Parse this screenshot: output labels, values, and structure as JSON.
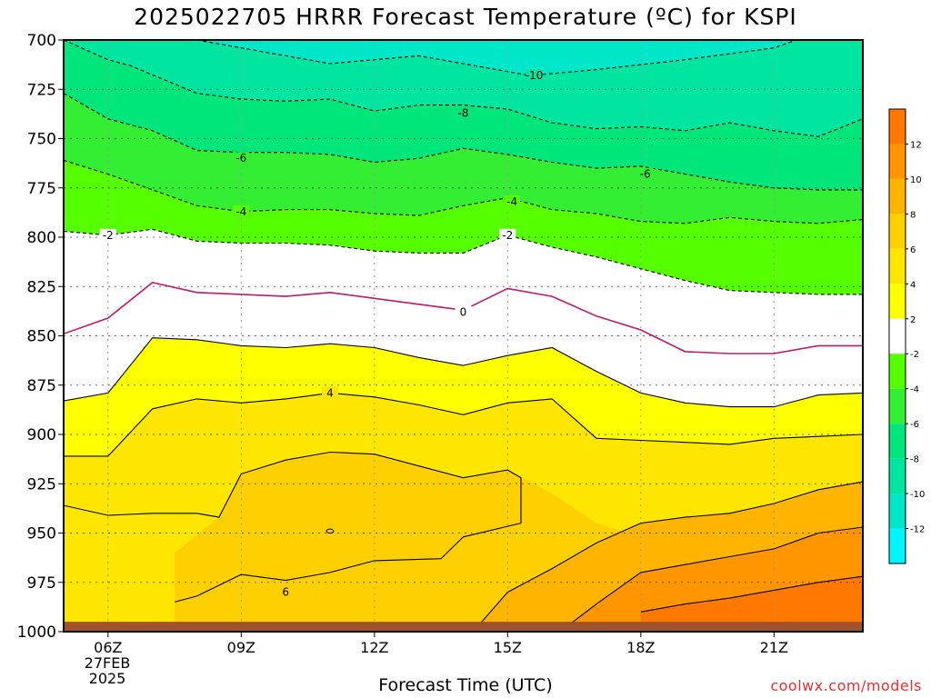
{
  "title": "2025022705 HRRR Forecast Temperature (ºC) for KSPI",
  "credit": "coolwx.com/models",
  "chart_data": {
    "type": "contour",
    "title": "2025022705 HRRR Forecast Temperature (ºC) for KSPI",
    "xlabel": "Forecast Time (UTC)",
    "date_label": [
      "27FEB",
      "2025"
    ],
    "x_ticks": [
      "06Z",
      "09Z",
      "12Z",
      "15Z",
      "18Z",
      "21Z"
    ],
    "x_tick_hours": [
      6,
      9,
      12,
      15,
      18,
      21
    ],
    "xlim": [
      5,
      23.0
    ],
    "y_ticks": [
      700,
      725,
      750,
      775,
      800,
      825,
      850,
      875,
      900,
      925,
      950,
      975,
      1000
    ],
    "ylim": [
      700,
      1000
    ],
    "yaxis": "pressure (hPa), inverted",
    "grid": true,
    "surface_color": "#a0522d",
    "colorbar": {
      "levels": [
        -14,
        -12,
        -10,
        -8,
        -6,
        -4,
        -2,
        2,
        4,
        6,
        8,
        10,
        12,
        14
      ],
      "tick_labels": [
        "-12",
        "-10",
        "-8",
        "-6",
        "-4",
        "-2",
        "2",
        "4",
        "6",
        "8",
        "10",
        "12"
      ],
      "colors": [
        "#00f5ff",
        "#00e6c8",
        "#00e6a0",
        "#00e67a",
        "#33ee33",
        "#55ff00",
        "#ffffff",
        "#ffff00",
        "#ffe600",
        "#ffd000",
        "#ffb400",
        "#ff9600",
        "#ff7800"
      ]
    },
    "contour_labels": [
      {
        "value": "-10",
        "hour": 15.6,
        "p": 718
      },
      {
        "value": "-8",
        "hour": 14.0,
        "p": 737
      },
      {
        "value": "-6",
        "hour": 9.0,
        "p": 760
      },
      {
        "value": "-6",
        "hour": 18.1,
        "p": 768
      },
      {
        "value": "-4",
        "hour": 9.0,
        "p": 787
      },
      {
        "value": "-4",
        "hour": 15.1,
        "p": 782
      },
      {
        "value": "-2",
        "hour": 6.0,
        "p": 799
      },
      {
        "value": "-2",
        "hour": 15.0,
        "p": 799
      },
      {
        "value": "0",
        "hour": 14.0,
        "p": 838
      },
      {
        "value": "4",
        "hour": 11.0,
        "p": 879
      },
      {
        "value": "6",
        "hour": 10.0,
        "p": 980
      }
    ],
    "contours": [
      {
        "value": -10,
        "style": "dashed",
        "points": [
          [
            8.0,
            700
          ],
          [
            11.0,
            712
          ],
          [
            13.0,
            708
          ],
          [
            15.0,
            716
          ],
          [
            15.5,
            718
          ],
          [
            17.0,
            715
          ],
          [
            19.0,
            710
          ],
          [
            21.0,
            704
          ],
          [
            21.5,
            700
          ]
        ]
      },
      {
        "value": -8,
        "style": "dashed",
        "points": [
          [
            5.0,
            700
          ],
          [
            6.0,
            710
          ],
          [
            6.5,
            713
          ],
          [
            8.0,
            727
          ],
          [
            9.0,
            730
          ],
          [
            10.0,
            731
          ],
          [
            11.0,
            730
          ],
          [
            12.0,
            736
          ],
          [
            13.0,
            733
          ],
          [
            14.0,
            733
          ],
          [
            15.0,
            735
          ],
          [
            16.0,
            742
          ],
          [
            17.0,
            745
          ],
          [
            18.0,
            744
          ],
          [
            19.0,
            746
          ],
          [
            20.0,
            742
          ],
          [
            21.0,
            746
          ],
          [
            22.0,
            749
          ],
          [
            23.0,
            740
          ]
        ]
      },
      {
        "value": -6,
        "style": "dashed",
        "points": [
          [
            5.0,
            727
          ],
          [
            6.0,
            740
          ],
          [
            7.0,
            746
          ],
          [
            8.0,
            756
          ],
          [
            9.0,
            757
          ],
          [
            10.0,
            757
          ],
          [
            11.0,
            758
          ],
          [
            12.0,
            762
          ],
          [
            13.0,
            760
          ],
          [
            14.0,
            755
          ],
          [
            15.0,
            758
          ],
          [
            16.0,
            762
          ],
          [
            17.0,
            765
          ],
          [
            18.0,
            764
          ],
          [
            19.0,
            768
          ],
          [
            20.0,
            772
          ],
          [
            21.0,
            775
          ],
          [
            22.0,
            776
          ],
          [
            23.0,
            776
          ]
        ]
      },
      {
        "value": -4,
        "style": "dashed",
        "points": [
          [
            5.0,
            761
          ],
          [
            6.0,
            768
          ],
          [
            7.0,
            776
          ],
          [
            8.0,
            784
          ],
          [
            9.0,
            787
          ],
          [
            10.0,
            786
          ],
          [
            11.0,
            786
          ],
          [
            12.0,
            788
          ],
          [
            13.0,
            789
          ],
          [
            14.0,
            784
          ],
          [
            15.0,
            780
          ],
          [
            16.0,
            786
          ],
          [
            17.0,
            788
          ],
          [
            18.0,
            792
          ],
          [
            19.0,
            793
          ],
          [
            20.0,
            790
          ],
          [
            21.0,
            792
          ],
          [
            22.0,
            793
          ],
          [
            23.0,
            791
          ]
        ]
      },
      {
        "value": -2,
        "style": "dashed",
        "points": [
          [
            5.0,
            797
          ],
          [
            6.0,
            799
          ],
          [
            7.0,
            796
          ],
          [
            8.0,
            802
          ],
          [
            9.0,
            803
          ],
          [
            10.0,
            803
          ],
          [
            11.0,
            804
          ],
          [
            12.0,
            807
          ],
          [
            13.0,
            808
          ],
          [
            14.0,
            808
          ],
          [
            15.0,
            799
          ],
          [
            16.0,
            805
          ],
          [
            17.0,
            810
          ],
          [
            18.0,
            816
          ],
          [
            19.0,
            822
          ],
          [
            20.0,
            827
          ],
          [
            21.0,
            828
          ],
          [
            22.0,
            829
          ],
          [
            23.0,
            829
          ]
        ]
      },
      {
        "value": 0,
        "style": "solid",
        "color": "#c0186a",
        "points": [
          [
            5.0,
            849
          ],
          [
            6.0,
            841
          ],
          [
            7.0,
            823
          ],
          [
            8.0,
            828
          ],
          [
            9.0,
            829
          ],
          [
            10.0,
            830
          ],
          [
            11.0,
            828
          ],
          [
            12.0,
            831
          ],
          [
            13.0,
            834
          ],
          [
            14.0,
            837
          ],
          [
            15.0,
            826
          ],
          [
            16.0,
            830
          ],
          [
            17.0,
            840
          ],
          [
            18.0,
            847
          ],
          [
            19.0,
            858
          ],
          [
            20.0,
            859
          ],
          [
            21.0,
            859
          ],
          [
            22.0,
            855
          ],
          [
            23.0,
            855
          ]
        ]
      },
      {
        "value": 2,
        "style": "solid",
        "points": [
          [
            5.0,
            883
          ],
          [
            6.0,
            879
          ],
          [
            7.0,
            851
          ],
          [
            8.0,
            852
          ],
          [
            9.0,
            855
          ],
          [
            10.0,
            856
          ],
          [
            11.0,
            854
          ],
          [
            12.0,
            856
          ],
          [
            13.0,
            861
          ],
          [
            14.0,
            865
          ],
          [
            15.0,
            860
          ],
          [
            16.0,
            856
          ],
          [
            17.0,
            868
          ],
          [
            18.0,
            879
          ],
          [
            19.0,
            884
          ],
          [
            20.0,
            886
          ],
          [
            21.0,
            886
          ],
          [
            22.0,
            880
          ],
          [
            23.0,
            879
          ]
        ]
      },
      {
        "value": 4,
        "style": "solid",
        "points": [
          [
            5.0,
            911
          ],
          [
            6.0,
            911
          ],
          [
            7.0,
            887
          ],
          [
            8.0,
            882
          ],
          [
            9.0,
            884
          ],
          [
            10.0,
            882
          ],
          [
            11.0,
            879
          ],
          [
            12.0,
            881
          ],
          [
            13.0,
            885
          ],
          [
            14.0,
            890
          ],
          [
            15.0,
            884
          ],
          [
            16.0,
            882
          ],
          [
            17.0,
            902
          ],
          [
            18.0,
            903
          ],
          [
            19.0,
            904
          ],
          [
            20.0,
            905
          ],
          [
            21.0,
            902
          ],
          [
            22.0,
            901
          ],
          [
            23.0,
            900
          ]
        ]
      },
      {
        "value": 6,
        "style": "solid",
        "points": [
          [
            5.0,
            936
          ],
          [
            6.0,
            941
          ],
          [
            7.0,
            940
          ],
          [
            8.0,
            940
          ],
          [
            8.5,
            942
          ],
          [
            9.0,
            920
          ],
          [
            10.0,
            913
          ],
          [
            11.0,
            909
          ],
          [
            12.0,
            910
          ],
          [
            13.0,
            916
          ],
          [
            14.0,
            922
          ],
          [
            15.0,
            918
          ],
          [
            15.3,
            922
          ],
          [
            15.3,
            945
          ],
          [
            14.0,
            952
          ],
          [
            13.5,
            963
          ],
          [
            12.0,
            964
          ],
          [
            11.0,
            970
          ],
          [
            10.0,
            974
          ],
          [
            9.0,
            971
          ],
          [
            8.0,
            982
          ],
          [
            7.5,
            985
          ]
        ]
      },
      {
        "value": 8,
        "style": "solid",
        "points": [
          [
            14.3,
            998
          ],
          [
            15.0,
            980
          ],
          [
            16.0,
            968
          ],
          [
            17.0,
            955
          ],
          [
            18.0,
            945
          ],
          [
            19.0,
            942
          ],
          [
            20.0,
            940
          ],
          [
            21.0,
            935
          ],
          [
            22.0,
            928
          ],
          [
            23.0,
            924
          ]
        ]
      },
      {
        "value": 10,
        "style": "solid",
        "points": [
          [
            16.3,
            998
          ],
          [
            17.0,
            986
          ],
          [
            18.0,
            970
          ],
          [
            19.0,
            966
          ],
          [
            20.0,
            962
          ],
          [
            21.0,
            958
          ],
          [
            22.0,
            950
          ],
          [
            23.0,
            947
          ]
        ]
      },
      {
        "value": 12,
        "style": "solid",
        "points": [
          [
            18.0,
            990
          ],
          [
            19.0,
            986
          ],
          [
            20.0,
            983
          ],
          [
            21.0,
            979
          ],
          [
            22.0,
            975
          ],
          [
            23.0,
            972
          ]
        ]
      }
    ]
  }
}
